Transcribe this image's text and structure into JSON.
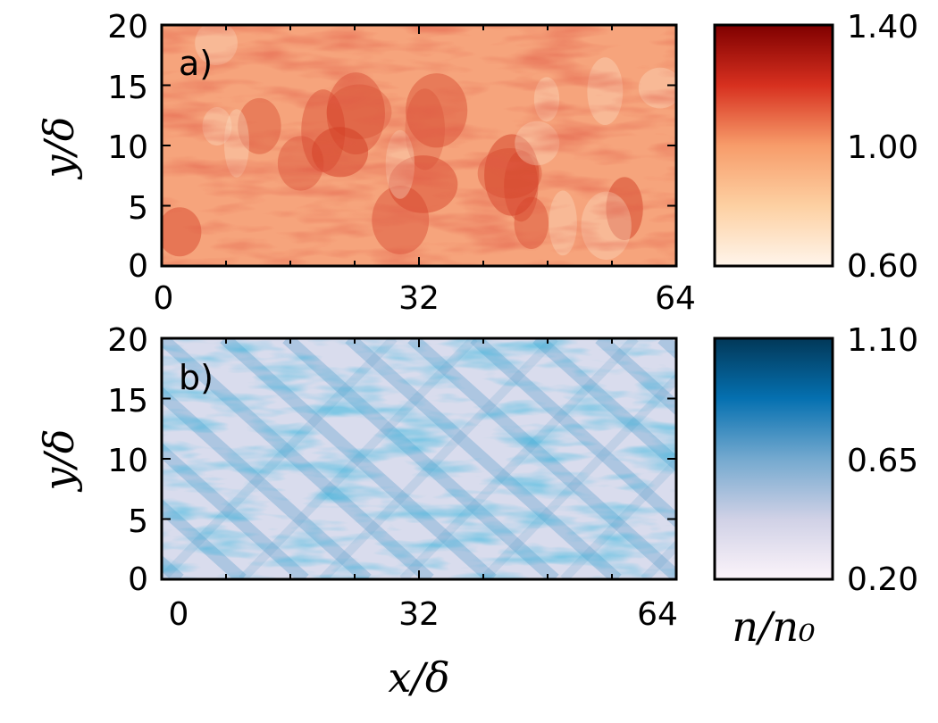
{
  "chart_data": [
    {
      "type": "heatmap",
      "panel_label": "a)",
      "xlabel": "",
      "ylabel": "y/δ",
      "xlim": [
        0,
        64
      ],
      "ylim": [
        0,
        20
      ],
      "x_ticks": [
        0,
        32,
        64
      ],
      "y_ticks": [
        0,
        5,
        10,
        15,
        20
      ],
      "colormap": "Reds",
      "colors": {
        "low": "#fff5eb",
        "mid": "#f79c6a",
        "high": "#7f0000"
      },
      "colorbar": {
        "ticks": [
          "1.40",
          "1.00",
          "0.60"
        ],
        "range": [
          0.6,
          1.4
        ]
      }
    },
    {
      "type": "heatmap",
      "panel_label": "b)",
      "xlabel": "x/δ",
      "ylabel": "y/δ",
      "xlim": [
        0,
        64
      ],
      "ylim": [
        0,
        20
      ],
      "x_ticks": [
        0,
        32,
        64
      ],
      "y_ticks": [
        0,
        5,
        10,
        15,
        20
      ],
      "colormap": "PuBu",
      "colors": {
        "low": "#f7f3fa",
        "mid": "#75a9cf",
        "high": "#023858"
      },
      "colorbar": {
        "ticks": [
          "1.10",
          "0.65",
          "0.20"
        ],
        "range": [
          0.2,
          1.1
        ],
        "label": "n/n₀"
      }
    }
  ]
}
